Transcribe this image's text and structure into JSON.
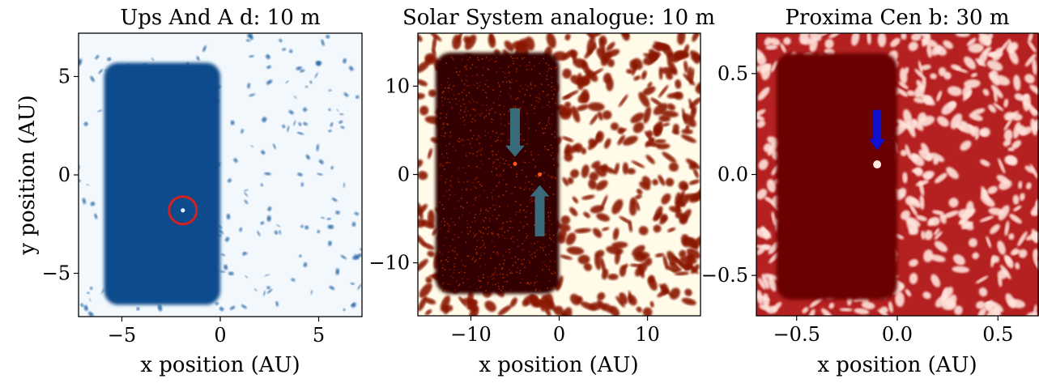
{
  "chart_data": [
    {
      "type": "heatmap",
      "title": "Ups And A d: 10 m",
      "xlabel": "x position (AU)",
      "ylabel": "y position (AU)",
      "xlim": [
        -7.2,
        7.2
      ],
      "ylim": [
        -7.2,
        7.2
      ],
      "xticks": [
        -5,
        0,
        5
      ],
      "yticks": [
        -5,
        0,
        5
      ],
      "xtick_labels": [
        "−5",
        "0",
        "5"
      ],
      "ytick_labels": [
        "−5",
        "0",
        "5"
      ],
      "colormap": "Blues",
      "dark_region": {
        "x": [
          -5.9,
          0.0
        ],
        "y": [
          -6.6,
          5.7
        ]
      },
      "marker": {
        "kind": "circle",
        "x": -1.9,
        "y": -1.8,
        "radius": 0.7,
        "color": "#d42020"
      },
      "source_point": {
        "x": -1.9,
        "y": -1.8
      }
    },
    {
      "type": "heatmap",
      "title": "Solar System analogue: 10 m",
      "xlabel": "x position (AU)",
      "ylabel": "",
      "xlim": [
        -16,
        16
      ],
      "ylim": [
        -16,
        16
      ],
      "xticks": [
        -10,
        0,
        10
      ],
      "yticks": [
        -10,
        0,
        10
      ],
      "xtick_labels": [
        "−10",
        "0",
        "10"
      ],
      "ytick_labels": [
        "−10",
        "0",
        "10"
      ],
      "colormap": "afmhot",
      "dark_region": {
        "x": [
          -14,
          0.0
        ],
        "y": [
          -13.5,
          13.8
        ]
      },
      "arrows": [
        {
          "direction": "down",
          "x": -5.0,
          "y_from": 7.5,
          "y_to": 2.0,
          "color": "#3a6b7a"
        },
        {
          "direction": "up",
          "x": -2.2,
          "y_from": -7.0,
          "y_to": -1.2,
          "color": "#3a6b7a"
        }
      ],
      "source_points": [
        {
          "x": -5.0,
          "y": 1.2
        },
        {
          "x": -2.2,
          "y": 0.0
        }
      ]
    },
    {
      "type": "heatmap",
      "title": "Proxima Cen b: 30 m",
      "xlabel": "x position (AU)",
      "ylabel": "",
      "xlim": [
        -0.7,
        0.7
      ],
      "ylim": [
        -0.7,
        0.7
      ],
      "xticks": [
        -0.5,
        0.0,
        0.5
      ],
      "yticks": [
        -0.5,
        0.0,
        0.5
      ],
      "xtick_labels": [
        "−0.5",
        "0.0",
        "0.5"
      ],
      "ytick_labels": [
        "−0.5",
        "0.0",
        "0.5"
      ],
      "colormap": "Reds",
      "dark_region": {
        "x": [
          -0.6,
          0.0
        ],
        "y": [
          -0.62,
          0.6
        ]
      },
      "arrows": [
        {
          "direction": "down",
          "x": -0.1,
          "y_from": 0.32,
          "y_to": 0.12,
          "color": "#1010d0"
        }
      ],
      "source_points": [
        {
          "x": -0.1,
          "y": 0.05
        }
      ]
    }
  ]
}
